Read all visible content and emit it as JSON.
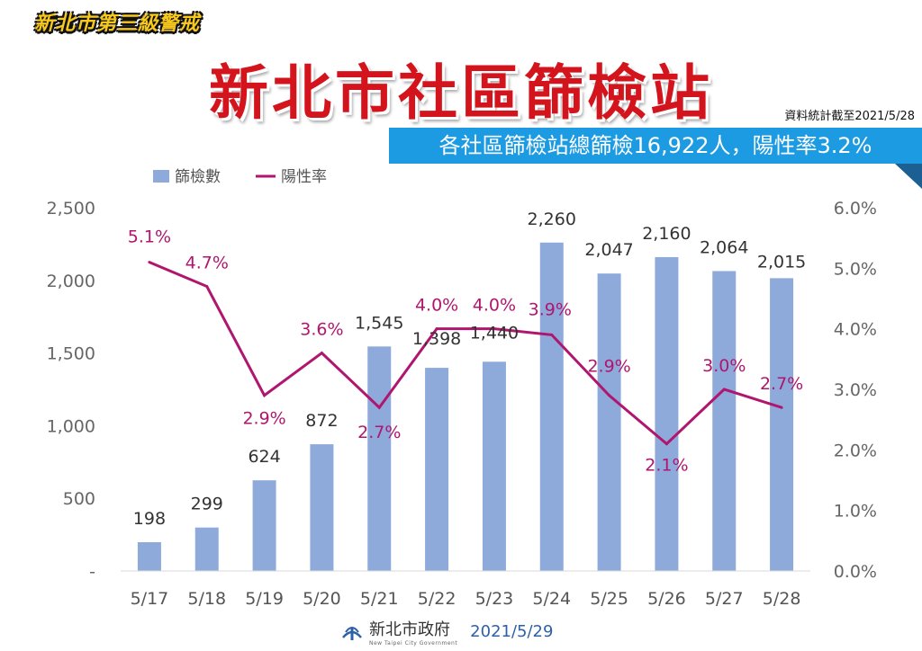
{
  "header": {
    "banner": "新北市第三級警戒",
    "title": "新北市社區篩檢站",
    "date_note": "資料統計截至2021/5/28",
    "summary": "各社區篩檢站總篩檢16,922人，陽性率3.2%"
  },
  "footer": {
    "org": "新北市政府",
    "org_en": "New Taipei City Government",
    "date": "2021/5/29"
  },
  "colors": {
    "bar": "#8eaadb",
    "line": "#b0166e",
    "title": "#d4141c",
    "summary_bg": "#1c9be3"
  },
  "chart_data": {
    "type": "bar",
    "categories": [
      "5/17",
      "5/18",
      "5/19",
      "5/20",
      "5/21",
      "5/22",
      "5/23",
      "5/24",
      "5/25",
      "5/26",
      "5/27",
      "5/28"
    ],
    "series": [
      {
        "name": "篩檢數",
        "type": "bar",
        "axis": "left",
        "values": [
          198,
          299,
          624,
          872,
          1545,
          1398,
          1440,
          2260,
          2047,
          2160,
          2064,
          2015
        ],
        "labels": [
          "198",
          "299",
          "624",
          "872",
          "1,545",
          "1,398",
          "1,440",
          "2,260",
          "2,047",
          "2,160",
          "2,064",
          "2,015"
        ]
      },
      {
        "name": "陽性率",
        "type": "line",
        "axis": "right",
        "values": [
          5.1,
          4.7,
          2.9,
          3.6,
          2.7,
          4.0,
          4.0,
          3.9,
          2.9,
          2.1,
          3.0,
          2.7
        ],
        "labels": [
          "5.1%",
          "4.7%",
          "2.9%",
          "3.6%",
          "2.7%",
          "4.0%",
          "4.0%",
          "3.9%",
          "2.9%",
          "2.1%",
          "3.0%",
          "2.7%"
        ]
      }
    ],
    "y_left": {
      "ylim": [
        0,
        2500
      ],
      "ticks": [
        "-",
        "500",
        "1,000",
        "1,500",
        "2,000",
        "2,500"
      ]
    },
    "y_right": {
      "ylim": [
        0,
        6
      ],
      "ticks": [
        "0.0%",
        "1.0%",
        "2.0%",
        "3.0%",
        "4.0%",
        "5.0%",
        "6.0%"
      ]
    },
    "legend_position": "top-left",
    "grid": false
  }
}
